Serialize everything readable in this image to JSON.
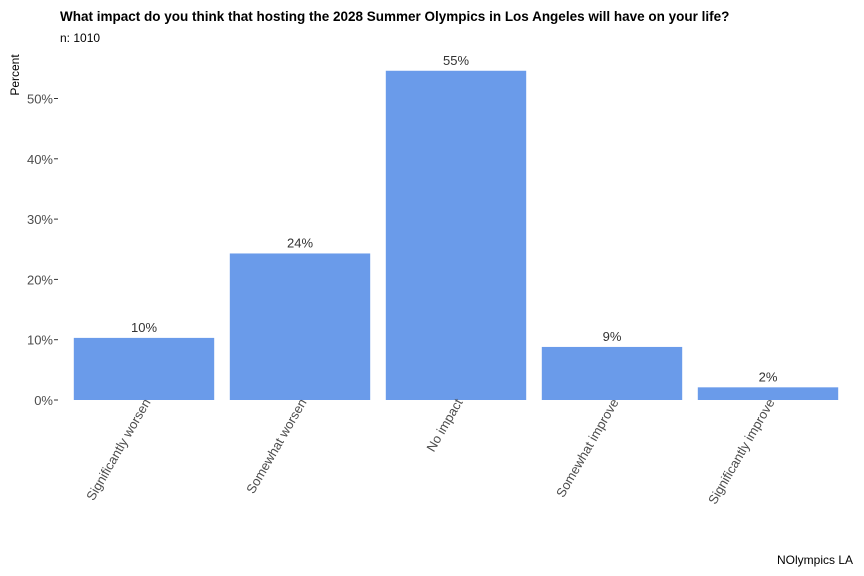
{
  "chart_data": {
    "type": "bar",
    "title": "What impact do you think that hosting the 2028 Summer Olympics in Los Angeles will have on your life?",
    "subtitle": "n: 1010",
    "caption": "NOlympics LA",
    "xlabel": "",
    "ylabel": "Percent",
    "categories": [
      "Significantly worsen",
      "Somewhat worsen",
      "No impact",
      "Somewhat improve",
      "Significantly improve"
    ],
    "values": [
      10.3,
      24.3,
      54.6,
      8.8,
      2.1
    ],
    "data_labels": [
      "10%",
      "24%",
      "55%",
      "9%",
      "2%"
    ],
    "yticks": [
      0,
      10,
      20,
      30,
      40,
      50
    ],
    "ytick_labels": [
      "0%",
      "10%",
      "20%",
      "30%",
      "40%",
      "50%"
    ],
    "ylim": [
      0,
      57
    ],
    "bar_color": "#6a9bea",
    "grid": false,
    "legend": "none"
  }
}
